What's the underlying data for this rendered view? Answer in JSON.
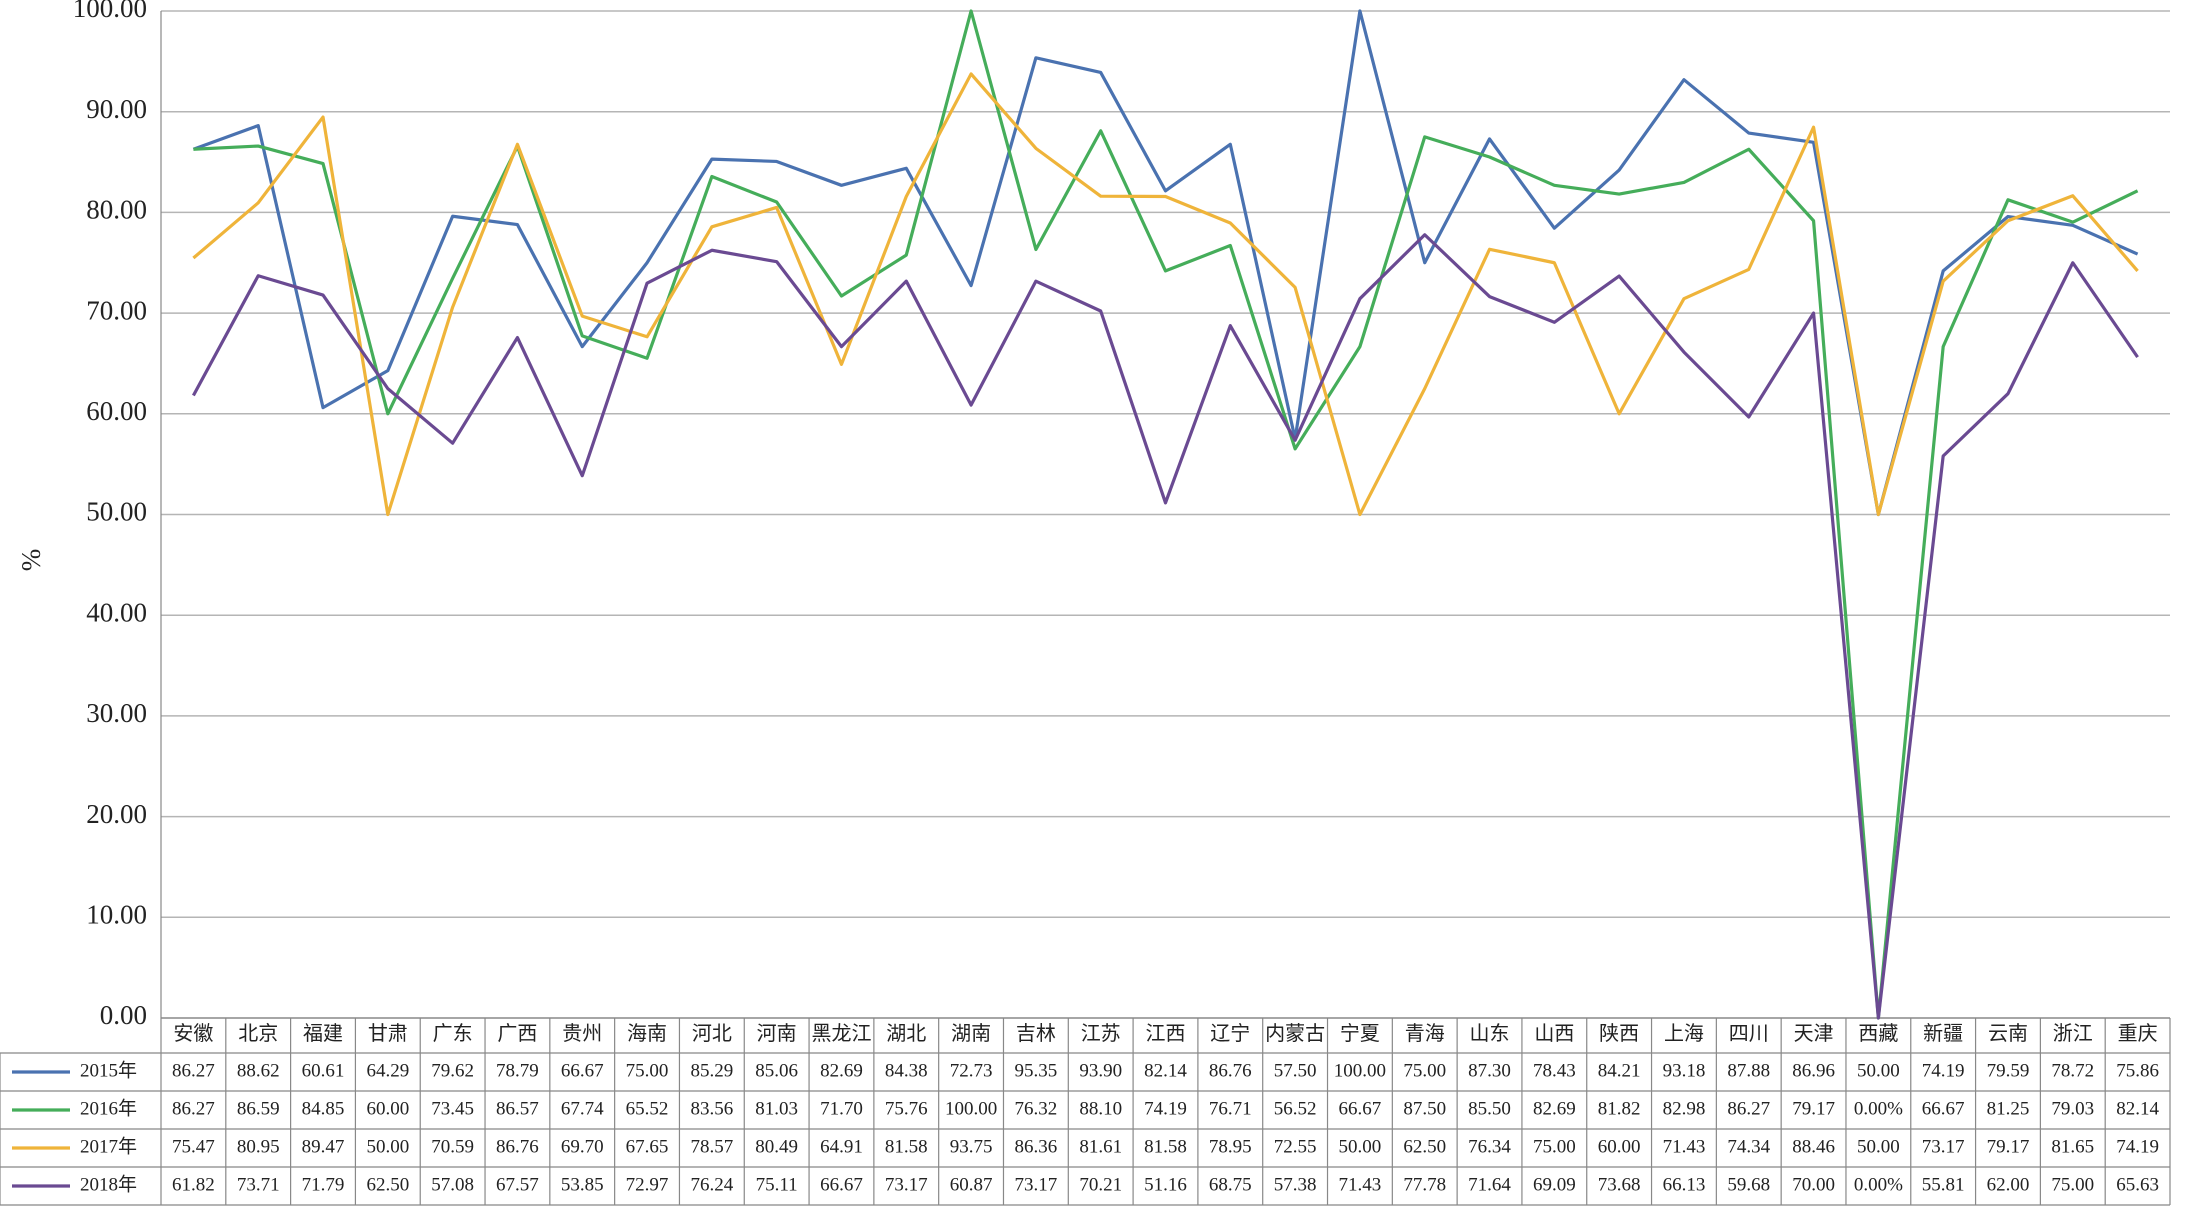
{
  "chart_data": {
    "type": "line",
    "y_label": "%",
    "categories": [
      "安徽",
      "北京",
      "福建",
      "甘肃",
      "广东",
      "广西",
      "贵州",
      "海南",
      "河北",
      "河南",
      "黑龙江",
      "湖北",
      "湖南",
      "吉林",
      "江苏",
      "江西",
      "辽宁",
      "内蒙古",
      "宁夏",
      "青海",
      "山东",
      "山西",
      "陕西",
      "上海",
      "四川",
      "天津",
      "西藏",
      "新疆",
      "云南",
      "浙江",
      "重庆"
    ],
    "ylim": [
      0,
      100
    ],
    "yticks": [
      {
        "value": 0,
        "label": "0.00"
      },
      {
        "value": 10,
        "label": "10.00"
      },
      {
        "value": 20,
        "label": "20.00"
      },
      {
        "value": 30,
        "label": "30.00"
      },
      {
        "value": 40,
        "label": "40.00"
      },
      {
        "value": 50,
        "label": "50.00"
      },
      {
        "value": 60,
        "label": "60.00"
      },
      {
        "value": 70,
        "label": "70.00"
      },
      {
        "value": 80,
        "label": "80.00"
      },
      {
        "value": 90,
        "label": "90.00"
      },
      {
        "value": 100,
        "label": "100.00"
      }
    ],
    "grid": true,
    "series": [
      {
        "name": "2015年",
        "color": "#4a72b0",
        "values": [
          86.27,
          88.62,
          60.61,
          64.29,
          79.62,
          78.79,
          66.67,
          75.0,
          85.29,
          85.06,
          82.69,
          84.38,
          72.73,
          95.35,
          93.9,
          82.14,
          86.76,
          57.5,
          100.0,
          75.0,
          87.3,
          78.43,
          84.21,
          93.18,
          87.88,
          86.96,
          50.0,
          74.19,
          79.59,
          78.72,
          75.86
        ],
        "value_labels": [
          "86.27",
          "88.62",
          "60.61",
          "64.29",
          "79.62",
          "78.79",
          "66.67",
          "75.00",
          "85.29",
          "85.06",
          "82.69",
          "84.38",
          "72.73",
          "95.35",
          "93.90",
          "82.14",
          "86.76",
          "57.50",
          "100.00",
          "75.00",
          "87.30",
          "78.43",
          "84.21",
          "93.18",
          "87.88",
          "86.96",
          "50.00",
          "74.19",
          "79.59",
          "78.72",
          "75.86"
        ]
      },
      {
        "name": "2016年",
        "color": "#45ad5a",
        "values": [
          86.27,
          86.59,
          84.85,
          60.0,
          73.45,
          86.57,
          67.74,
          65.52,
          83.56,
          81.03,
          71.7,
          75.76,
          100.0,
          76.32,
          88.1,
          74.19,
          76.71,
          56.52,
          66.67,
          87.5,
          85.5,
          82.69,
          81.82,
          82.98,
          86.27,
          79.17,
          0,
          66.67,
          81.25,
          79.03,
          82.14
        ],
        "value_labels": [
          "86.27",
          "86.59",
          "84.85",
          "60.00",
          "73.45",
          "86.57",
          "67.74",
          "65.52",
          "83.56",
          "81.03",
          "71.70",
          "75.76",
          "100.00",
          "76.32",
          "88.10",
          "74.19",
          "76.71",
          "56.52",
          "66.67",
          "87.50",
          "85.50",
          "82.69",
          "81.82",
          "82.98",
          "86.27",
          "79.17",
          "0.00%",
          "66.67",
          "81.25",
          "79.03",
          "82.14"
        ]
      },
      {
        "name": "2017年",
        "color": "#efb43a",
        "values": [
          75.47,
          80.95,
          89.47,
          50.0,
          70.59,
          86.76,
          69.7,
          67.65,
          78.57,
          80.49,
          64.91,
          81.58,
          93.75,
          86.36,
          81.61,
          81.58,
          78.95,
          72.55,
          50.0,
          62.5,
          76.34,
          75.0,
          60.0,
          71.43,
          74.34,
          88.46,
          50.0,
          73.17,
          79.17,
          81.65,
          74.19
        ],
        "value_labels": [
          "75.47",
          "80.95",
          "89.47",
          "50.00",
          "70.59",
          "86.76",
          "69.70",
          "67.65",
          "78.57",
          "80.49",
          "64.91",
          "81.58",
          "93.75",
          "86.36",
          "81.61",
          "81.58",
          "78.95",
          "72.55",
          "50.00",
          "62.50",
          "76.34",
          "75.00",
          "60.00",
          "71.43",
          "74.34",
          "88.46",
          "50.00",
          "73.17",
          "79.17",
          "81.65",
          "74.19"
        ]
      },
      {
        "name": "2018年",
        "color": "#6a4a92",
        "values": [
          61.82,
          73.71,
          71.79,
          62.5,
          57.08,
          67.57,
          53.85,
          72.97,
          76.24,
          75.11,
          66.67,
          73.17,
          60.87,
          73.17,
          70.21,
          51.16,
          68.75,
          57.38,
          71.43,
          77.78,
          71.64,
          69.09,
          73.68,
          66.13,
          59.68,
          70.0,
          0,
          55.81,
          62.0,
          75.0,
          65.63
        ],
        "value_labels": [
          "61.82",
          "73.71",
          "71.79",
          "62.50",
          "57.08",
          "67.57",
          "53.85",
          "72.97",
          "76.24",
          "75.11",
          "66.67",
          "73.17",
          "60.87",
          "73.17",
          "70.21",
          "51.16",
          "68.75",
          "57.38",
          "71.43",
          "77.78",
          "71.64",
          "69.09",
          "73.68",
          "66.13",
          "59.68",
          "70.00",
          "0.00%",
          "55.81",
          "62.00",
          "75.00",
          "65.63"
        ]
      }
    ]
  }
}
